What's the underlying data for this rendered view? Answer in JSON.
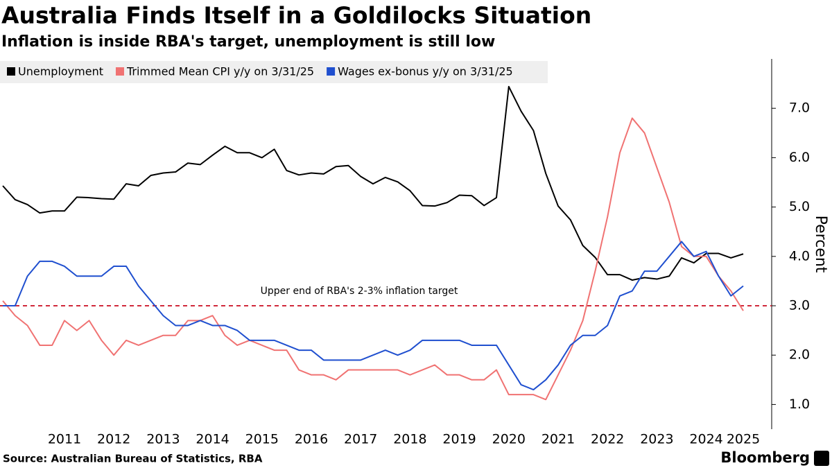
{
  "chart_data": {
    "type": "line",
    "title": "Australia Finds Itself in a Goldilocks Situation",
    "subtitle": "Inflation is inside RBA's target, unemployment is still low",
    "y_axis_label": "Percent",
    "source": "Source: Australian Bureau of Statistics, RBA",
    "brand": "Bloomberg",
    "categories": [
      null,
      null,
      null,
      null,
      null,
      "2011",
      null,
      null,
      null,
      "2012",
      null,
      null,
      null,
      "2013",
      null,
      null,
      null,
      "2014",
      null,
      null,
      null,
      "2015",
      null,
      null,
      null,
      "2016",
      null,
      null,
      null,
      "2017",
      null,
      null,
      null,
      "2018",
      null,
      null,
      null,
      "2019",
      null,
      null,
      null,
      "2020",
      null,
      null,
      null,
      "2021",
      null,
      null,
      null,
      "2022",
      null,
      null,
      null,
      "2023",
      null,
      null,
      null,
      "2024",
      null,
      null,
      "2025"
    ],
    "series": [
      {
        "name": "Unemployment",
        "color": "#000000",
        "values": [
          5.43,
          5.15,
          5.05,
          4.88,
          4.92,
          4.92,
          5.2,
          5.19,
          5.17,
          5.16,
          5.47,
          5.43,
          5.64,
          5.69,
          5.71,
          5.89,
          5.86,
          6.05,
          6.23,
          6.1,
          6.1,
          6.0,
          6.17,
          5.74,
          5.65,
          5.69,
          5.67,
          5.82,
          5.84,
          5.62,
          5.47,
          5.6,
          5.51,
          5.33,
          5.03,
          5.02,
          5.09,
          5.24,
          5.23,
          5.03,
          5.19,
          7.44,
          6.94,
          6.55,
          5.68,
          5.02,
          4.74,
          4.22,
          3.98,
          3.63,
          3.63,
          3.52,
          3.57,
          3.54,
          3.6,
          3.97,
          3.87,
          4.06,
          4.06,
          3.97,
          4.05
        ]
      },
      {
        "name": "Trimmed Mean CPI y/y on 3/31/25",
        "color": "#f07272",
        "values": [
          3.1,
          2.8,
          2.6,
          2.2,
          2.2,
          2.7,
          2.5,
          2.7,
          2.3,
          2.0,
          2.3,
          2.2,
          2.3,
          2.4,
          2.4,
          2.7,
          2.7,
          2.8,
          2.4,
          2.2,
          2.3,
          2.2,
          2.1,
          2.1,
          1.7,
          1.6,
          1.6,
          1.5,
          1.7,
          1.7,
          1.7,
          1.7,
          1.7,
          1.6,
          1.7,
          1.8,
          1.6,
          1.6,
          1.5,
          1.5,
          1.7,
          1.2,
          1.2,
          1.2,
          1.1,
          1.6,
          2.1,
          2.7,
          3.7,
          4.8,
          6.1,
          6.8,
          6.5,
          5.8,
          5.1,
          4.2,
          4.0,
          4.0,
          3.6,
          3.3,
          2.9
        ]
      },
      {
        "name": "Wages ex-bonus y/y on 3/31/25",
        "color": "#1f4fcf",
        "values": [
          3.0,
          3.0,
          3.6,
          3.9,
          3.9,
          3.8,
          3.6,
          3.6,
          3.6,
          3.8,
          3.8,
          3.4,
          3.1,
          2.8,
          2.6,
          2.6,
          2.7,
          2.6,
          2.6,
          2.5,
          2.3,
          2.3,
          2.3,
          2.2,
          2.1,
          2.1,
          1.9,
          1.9,
          1.9,
          1.9,
          2.0,
          2.1,
          2.0,
          2.1,
          2.3,
          2.3,
          2.3,
          2.3,
          2.2,
          2.2,
          2.2,
          1.8,
          1.4,
          1.3,
          1.5,
          1.8,
          2.2,
          2.4,
          2.4,
          2.6,
          3.2,
          3.3,
          3.7,
          3.7,
          4.0,
          4.3,
          4.0,
          4.1,
          3.6,
          3.2,
          3.4
        ]
      }
    ],
    "reference_line": {
      "value": 3,
      "label": "Upper end of RBA's 2-3% inflation target",
      "color": "#d0283a"
    },
    "ylim": [
      0.5,
      8.0
    ],
    "yticks": [
      {
        "value": 1,
        "label": "1.0"
      },
      {
        "value": 2,
        "label": "2.0"
      },
      {
        "value": 3,
        "label": "3.0"
      },
      {
        "value": 4,
        "label": "4.0"
      },
      {
        "value": 5,
        "label": "5.0"
      },
      {
        "value": 6,
        "label": "6.0"
      },
      {
        "value": 7,
        "label": "7.0"
      }
    ],
    "grid": false,
    "legend": "top-left"
  }
}
